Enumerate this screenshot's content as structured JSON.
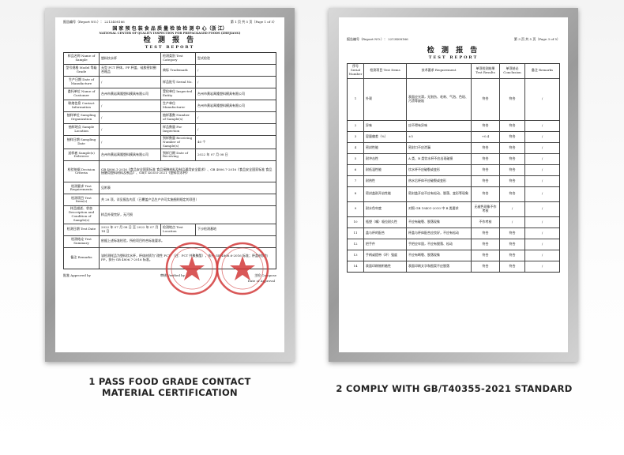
{
  "left_doc": {
    "report_no": "报告编号（Report NO.）： 2213408166",
    "page": "第 1 页 共 5 页（Page 1 of 5）",
    "header_cn": "国 家 预 包 装 食 品 质 量 检 验 检 测 中 心（浙 江）",
    "header_en": "NATIONAL CENTER OF QUALITY INSPECTION FOR PREPACKAGED FOODS (ZHEJIANG)",
    "title_cn": "检 测 报 告",
    "title_en": "TEST REPORT",
    "rows": [
      [
        "样品名称 Name of Sample",
        "塑料饮水杯",
        "检测类别 Test Category",
        "型式检验"
      ],
      [
        "型号规格 Model 等级 Grade",
        "无型 PCT 杯体，PP 杯盖、硅胶密封圈 合格品",
        "商标 Trademark",
        "/"
      ],
      [
        "生产日期 Date of Manufacture",
        "/",
        "样品批号 Serial No.",
        "/"
      ],
      [
        "委托单位 Name of Customer",
        "台州市黄岩禹隆塑料模具有限公司",
        "受检单位 Inspected Entity",
        "台州市黄岩禹隆塑料模具有限公司"
      ],
      [
        "联络信息 Contact Information",
        "/",
        "生产单位 Manufacturer",
        "台州市黄岩禹隆塑料模具有限公司"
      ],
      [
        "抽样单位 Sampling Organization",
        "/",
        "抽样基数 Number of Sample(s)",
        "/"
      ],
      [
        "抽样地点 Sample Location",
        "/",
        "样品数量 For Inspection",
        "/"
      ],
      [
        "抽样日期 Sampling Date",
        "/",
        "到样数量 Receiving Number of Sample(s)",
        "40 个"
      ],
      [
        "送样者 Sample(s) Deliverer",
        "台州市黄岩禹隆塑料模具有限公司",
        "到样日期 Date of Receiving",
        "2022 年 07 月 08 日"
      ],
      [
        "检验依据 Decision Criteria",
        "GB 4806.1-2016《食品安全国家标准 食品接触材料及制品通用安全要求》、GB 4806.7-2016《食品安全国家标准 食品接触用塑料材料及制品》、GB/T 40355-2021《塑料饮水杯》"
      ],
      [
        "检测要求 Test Requirements",
        "见附表"
      ],
      [
        "检测项目 Test Item(s)",
        "共 28 项，详见报告内页（已覆盖产品生产许可实施细则规定的项目）"
      ],
      [
        "样品描述、状态 Description and Condition of Sample(s)",
        "样品外观完好，无污损"
      ],
      [
        "检测日期 Test Date",
        "2022 年 07 月 08 日 至 2022 年 07 月 14 日",
        "检测地点 Test Location",
        "下沙检测基地"
      ],
      [
        "检测结论 Test Summary",
        "依据上述标准检验，所检项目符合标准要求。"
      ],
      [
        "备注 Remarks",
        "该检测样品为塑料饮水杯，杯体材质为“改性 PCT”（注：PCT 共聚聚酯），执行 GB 4806.6-2016 标准；杯盖材质为 PP，执行 GB 4806.7-2016 标准。"
      ]
    ],
    "signatures": [
      "批准 Approved by",
      "审核 Verified by",
      "主检 Compose"
    ],
    "issue_date": "Date of Approval"
  },
  "right_doc": {
    "report_no": "报告编号（Report NO.）： 2213408166",
    "page": "第 3 页 共 5 页（Page 3 of 5）",
    "title_cn": "检 测 报 告",
    "title_en": "TEST REPORT",
    "columns": [
      "序号 Serial Number",
      "检测项目 Test Items",
      "技术要求 Requirement",
      "单项检测结果 Test Results",
      "单项结论 Conclusion",
      "备注 Remarks"
    ],
    "rows": [
      [
        "1",
        "外观",
        "表面应光滑，无划伤、毛刺、气泡、色斑、污渍等缺陷",
        "符合",
        "符合",
        "/"
      ],
      [
        "2",
        "异味",
        "应不得有异味",
        "符合",
        "符合",
        "/"
      ],
      [
        "3",
        "容量偏差（%）",
        "±5",
        "+0.4",
        "符合",
        "/"
      ],
      [
        "4",
        "密封性能",
        "密封口不应泄漏",
        "符合",
        "符合",
        "/"
      ],
      [
        "5",
        "耐冲击性",
        "A 类、B 类饮水杯不应出现破损",
        "符合",
        "符合",
        "/"
      ],
      [
        "6",
        "耐低温性能",
        "饮水杯不应破裂或变形",
        "符合",
        "符合",
        "/"
      ],
      [
        "7",
        "耐热性",
        "热水后杯体不应破裂或变形",
        "符合",
        "符合",
        "/"
      ],
      [
        "8",
        "密封盖耐开启性能",
        "密封盖开启不应有松动、脱落、变形等现象",
        "符合",
        "符合",
        "/"
      ],
      [
        "9",
        "耐水色牢度",
        "对照 GB 18401-2010 中 B 类要求",
        "无褪色现象不作考核",
        "/",
        "/"
      ],
      [
        "10",
        "瓶塑（嘴）吸拉耐久性",
        "不应有破裂、脱落现象",
        "不作考核",
        "/",
        "/"
      ],
      [
        "11",
        "盖与杯的配合",
        "杯盖与杯体配合应良好，不应有松动",
        "符合",
        "符合",
        "/"
      ],
      [
        "12",
        "把手件",
        "手把应牢固，不应有脱落、松动",
        "符合",
        "符合",
        "/"
      ],
      [
        "13",
        "手柄或提带（环）强度",
        "不应有断裂、脱落现象",
        "符合",
        "符合",
        "/"
      ],
      [
        "14",
        "表面印刷物附着性",
        "表面印刷文字和图案不应脱落",
        "符合",
        "符合",
        "/"
      ]
    ]
  },
  "captions": {
    "left": [
      "1 PASS FOOD GRADE CONTACT",
      "MATERIAL CERTIFICATION"
    ],
    "right": "2 COMPLY WITH GB/T40355-2021 STANDARD"
  }
}
